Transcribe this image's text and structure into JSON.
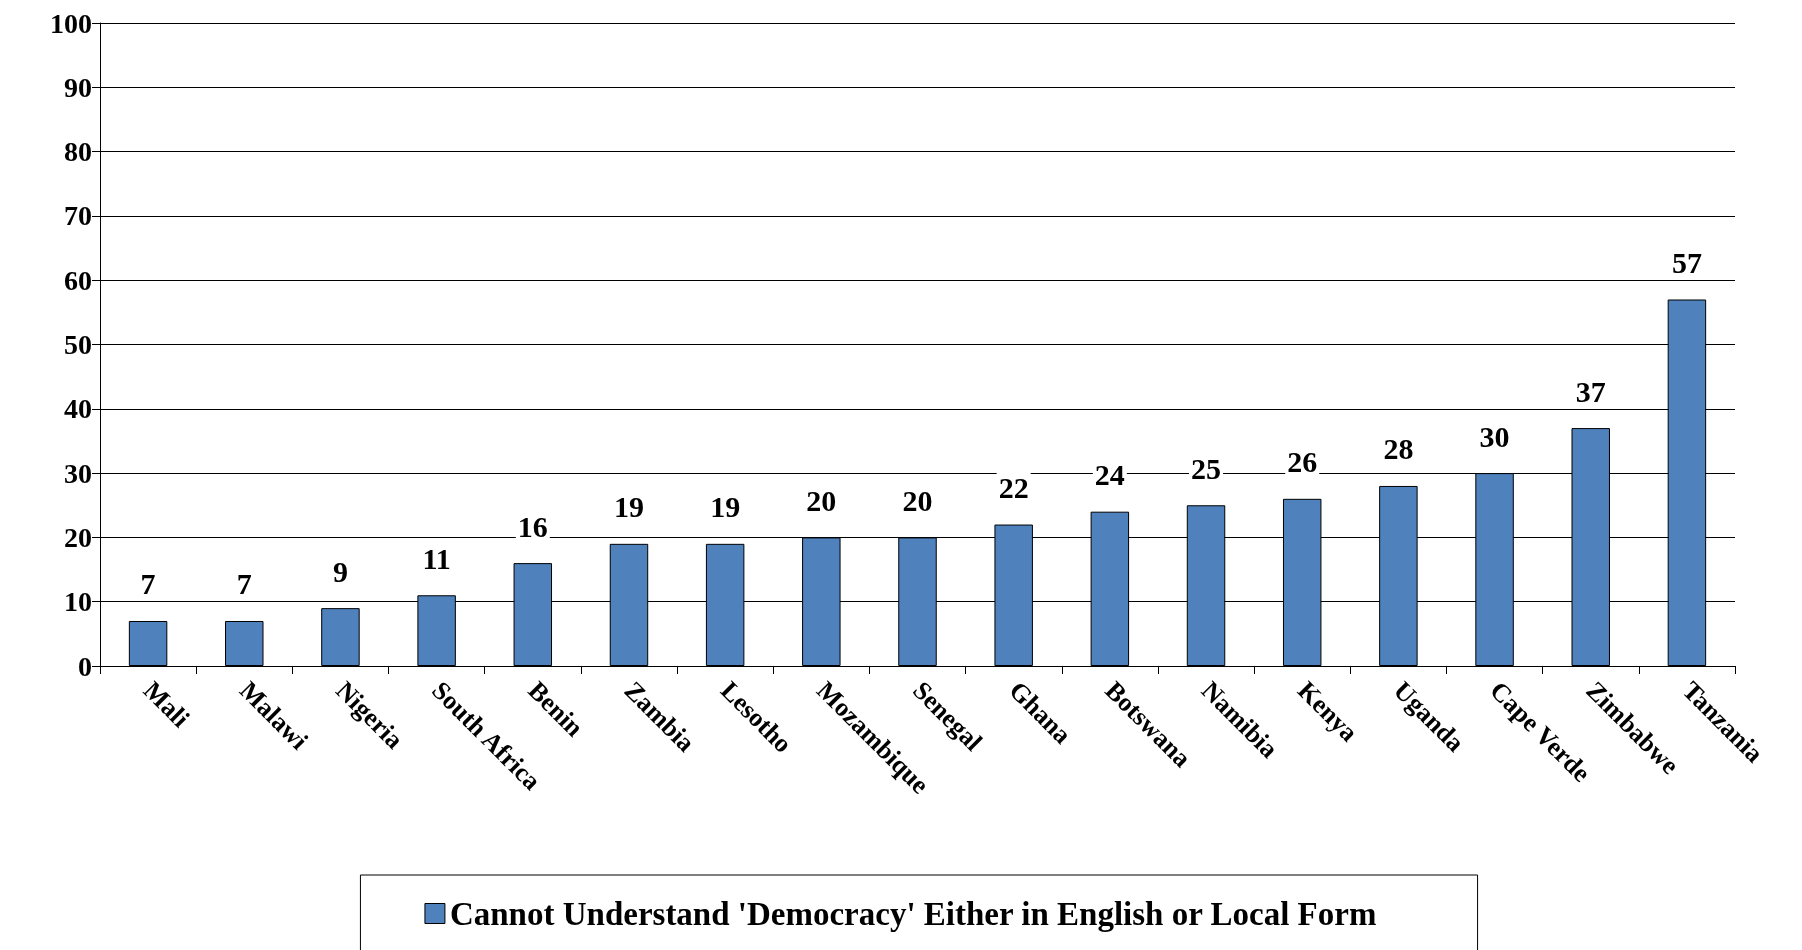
{
  "chart_data": {
    "type": "bar",
    "categories": [
      "Mali",
      "Malawi",
      "Nigeria",
      "South Africa",
      "Benin",
      "Zambia",
      "Lesotho",
      "Mozambique",
      "Senegal",
      "Ghana",
      "Botswana",
      "Namibia",
      "Kenya",
      "Uganda",
      "Cape Verde",
      "Zimbabwe",
      "Tanzania"
    ],
    "series": [
      {
        "name": "Cannot Understand 'Democracy' Either in English or Local Form",
        "color": "#4f81bd",
        "values": [
          7,
          7,
          9,
          11,
          16,
          19,
          19,
          20,
          20,
          22,
          24,
          25,
          26,
          28,
          30,
          37,
          57
        ]
      }
    ],
    "ylim": [
      0,
      100
    ],
    "yticks": [
      0,
      10,
      20,
      30,
      40,
      50,
      60,
      70,
      80,
      90,
      100
    ],
    "grid": "y",
    "legend": "bottom",
    "data_labels": true
  }
}
